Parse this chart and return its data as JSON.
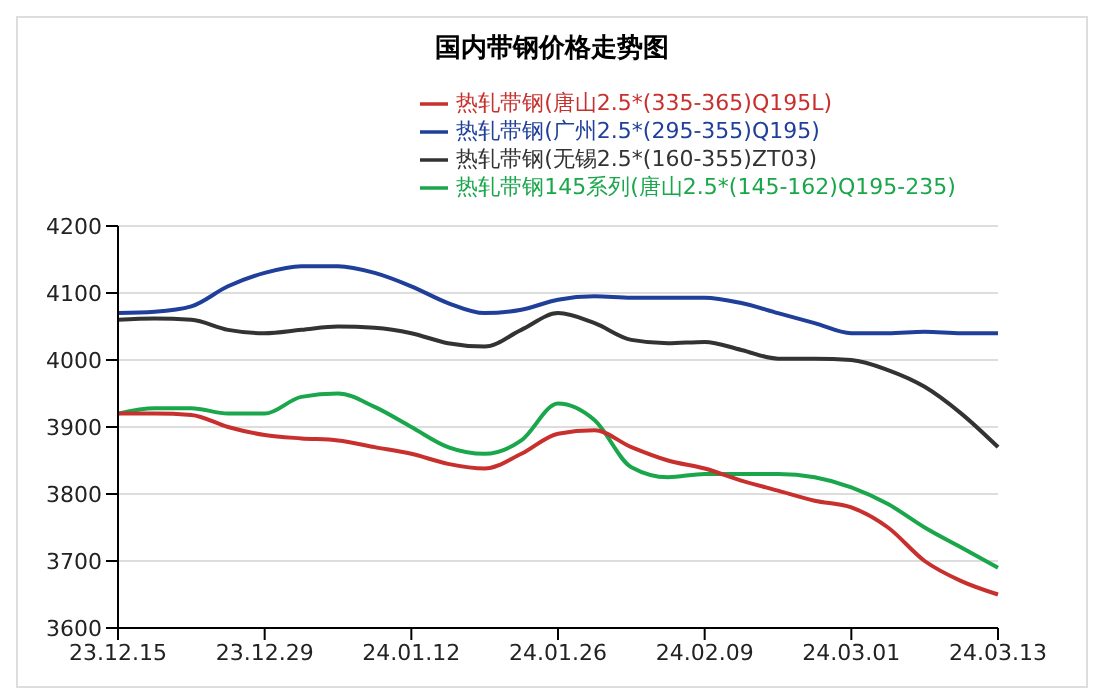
{
  "chart_data": {
    "type": "line",
    "title": "国内带钢价格走势图",
    "categories": [
      "23.12.15",
      null,
      null,
      null,
      "23.12.29",
      null,
      null,
      null,
      "24.01.12",
      null,
      null,
      null,
      "24.01.26",
      null,
      null,
      null,
      "24.02.09",
      null,
      null,
      null,
      "24.03.01",
      null,
      null,
      null,
      "24.03.13"
    ],
    "series": [
      {
        "name": "热轧带钢145系列(唐山2.5*(145-162)Q195-235)",
        "color": "#1aa64a",
        "values": [
          3920,
          3928,
          3928,
          3920,
          3920,
          3945,
          3950,
          3930,
          3900,
          3870,
          3860,
          3880,
          3935,
          3910,
          3840,
          3825,
          3830,
          3830,
          3830,
          3825,
          3810,
          3785,
          3750,
          3720,
          3690
        ]
      },
      {
        "name": "热轧带钢(无锡2.5*(160-355)ZT03)",
        "color": "#333333",
        "values": [
          4060,
          4062,
          4060,
          4045,
          4040,
          4045,
          4050,
          4048,
          4040,
          4025,
          4020,
          4045,
          4070,
          4055,
          4030,
          4025,
          4027,
          4015,
          4002,
          4002,
          4000,
          3985,
          3960,
          3920,
          3870
        ]
      },
      {
        "name": "热轧带钢(唐山2.5*(335-365)Q195L)",
        "color": "#c8302e",
        "values": [
          3920,
          3920,
          3918,
          3900,
          3888,
          3883,
          3880,
          3870,
          3860,
          3845,
          3838,
          3860,
          3890,
          3895,
          3870,
          3850,
          3838,
          3820,
          3805,
          3790,
          3780,
          3750,
          3700,
          3670,
          3650
        ]
      },
      {
        "name": "热轧带钢(广州2.5*(295-355)Q195)",
        "color": "#1f3f9a",
        "values": [
          4070,
          4072,
          4080,
          4110,
          4130,
          4140,
          4140,
          4130,
          4110,
          4085,
          4070,
          4075,
          4090,
          4095,
          4093,
          4093,
          4093,
          4085,
          4070,
          4055,
          4040,
          4040,
          4042,
          4040,
          4040
        ]
      }
    ],
    "ylim": [
      3600,
      4200
    ],
    "yticks": [
      3600,
      3700,
      3800,
      3900,
      4000,
      4100,
      4200
    ],
    "grid": "y",
    "legend": "top",
    "marker": "none",
    "line_style": "solid"
  }
}
